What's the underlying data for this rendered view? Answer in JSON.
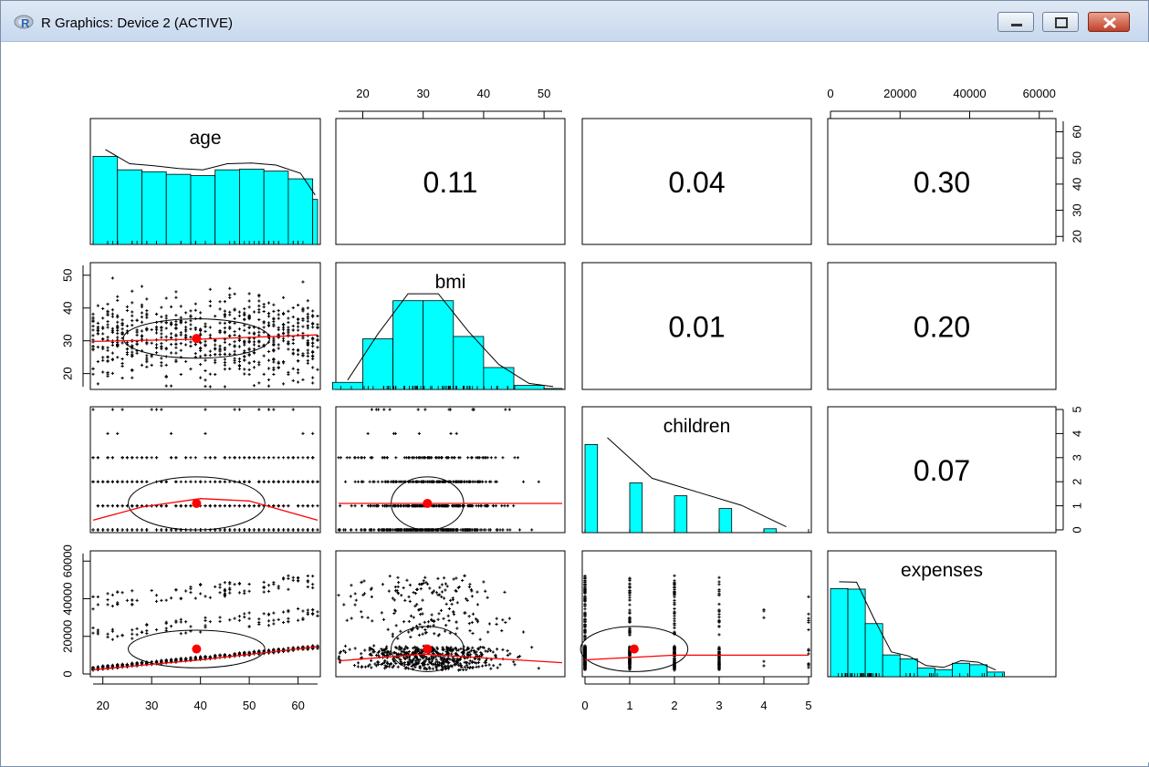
{
  "window": {
    "title": "R Graphics: Device 2 (ACTIVE)",
    "icon": "r-logo-icon",
    "controls": [
      "minimize-icon",
      "maximize-icon",
      "close-icon"
    ]
  },
  "chart_data": {
    "type": "scatter-matrix",
    "variables": [
      "age",
      "bmi",
      "children",
      "expenses"
    ],
    "correlations": [
      {
        "row": "age",
        "col": "bmi",
        "value": "0.11"
      },
      {
        "row": "age",
        "col": "children",
        "value": "0.04"
      },
      {
        "row": "age",
        "col": "expenses",
        "value": "0.30"
      },
      {
        "row": "bmi",
        "col": "children",
        "value": "0.01"
      },
      {
        "row": "bmi",
        "col": "expenses",
        "value": "0.20"
      },
      {
        "row": "children",
        "col": "expenses",
        "value": "0.07"
      }
    ],
    "axes": {
      "age": {
        "range": [
          18,
          64
        ],
        "ticks": [
          "20",
          "30",
          "40",
          "50",
          "60"
        ]
      },
      "bmi": {
        "range": [
          16,
          53
        ],
        "ticks": [
          "20",
          "30",
          "40",
          "50"
        ]
      },
      "children": {
        "range": [
          0,
          5
        ],
        "ticks": [
          "0",
          "1",
          "2",
          "3",
          "4",
          "5"
        ]
      },
      "expenses": {
        "range": [
          0,
          64000
        ],
        "ticks": [
          "0",
          "20000",
          "40000",
          "60000"
        ]
      }
    },
    "histograms": {
      "age": {
        "breaks": [
          18,
          23,
          28,
          33,
          38,
          43,
          48,
          53,
          58,
          63,
          64
        ],
        "counts": [
          137,
          116,
          113,
          109,
          107,
          116,
          117,
          114,
          102,
          70
        ]
      },
      "bmi": {
        "breaks": [
          15,
          20,
          25,
          30,
          35,
          40,
          45,
          50,
          55
        ],
        "counts": [
          30,
          215,
          377,
          377,
          225,
          93,
          17,
          4
        ]
      },
      "children": {
        "breaks": [
          0,
          1,
          2,
          3,
          4,
          5
        ],
        "counts": [
          574,
          324,
          240,
          157,
          25,
          18
        ]
      },
      "expenses": {
        "breaks": [
          0,
          5000,
          10000,
          15000,
          20000,
          25000,
          30000,
          35000,
          40000,
          45000,
          50000
        ],
        "counts": [
          360,
          358,
          217,
          89,
          73,
          36,
          29,
          55,
          49,
          19
        ]
      }
    },
    "centroids": {
      "age": 39.2,
      "bmi": 30.7,
      "children": 1.1,
      "expenses": 13270
    },
    "loess": {
      "age_bmi": [
        [
          18,
          29.8
        ],
        [
          40,
          30.5
        ],
        [
          64,
          31.8
        ]
      ],
      "age_children": [
        [
          18,
          0.4
        ],
        [
          28,
          0.95
        ],
        [
          40,
          1.3
        ],
        [
          50,
          1.2
        ],
        [
          64,
          0.4
        ]
      ],
      "age_expenses": [
        [
          18,
          2300
        ],
        [
          40,
          7500
        ],
        [
          64,
          14500
        ]
      ],
      "bmi_children": [
        [
          16,
          1.1
        ],
        [
          53,
          1.1
        ]
      ],
      "bmi_expenses": [
        [
          16,
          7000
        ],
        [
          30,
          10500
        ],
        [
          53,
          6000
        ]
      ],
      "children_expenses": [
        [
          0,
          7500
        ],
        [
          2,
          10000
        ],
        [
          5,
          10000
        ]
      ]
    },
    "ellipses": {
      "age_bmi": {
        "rx": 15,
        "ry": 6
      },
      "age_children": {
        "rx": 14,
        "ry": 1.1
      },
      "age_expenses": {
        "rx": 14,
        "ry": 10000
      },
      "bmi_children": {
        "rx": 6,
        "ry": 1.1
      },
      "bmi_expenses": {
        "rx": 6,
        "ry": 12000
      },
      "children_expenses": {
        "rx": 1.2,
        "ry": 12000
      }
    },
    "colors": {
      "hist_fill": "#00ffff",
      "fit_line": "#ff0000",
      "centroid": "#ff0000",
      "points": "#000000"
    }
  }
}
